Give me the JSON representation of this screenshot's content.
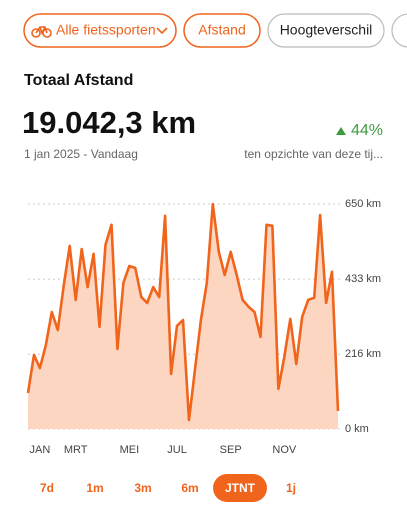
{
  "filters": [
    "Alle fietssporten",
    "Afstand",
    "Hoogteverschil"
  ],
  "summary": {
    "title": "Totaal Afstand",
    "total": "19.042,3 km",
    "change": "44%",
    "period": "1 jan 2025 - Vandaag",
    "comparison": "ten opzichte van deze tij..."
  },
  "chart_data": {
    "type": "area",
    "categories": [
      null,
      null,
      "JAN",
      null,
      null,
      null,
      null,
      null,
      "MRT",
      null,
      null,
      null,
      null,
      null,
      null,
      null,
      null,
      "MEI",
      null,
      null,
      null,
      null,
      null,
      null,
      null,
      "JUL",
      null,
      null,
      null,
      null,
      null,
      null,
      null,
      null,
      "SEP",
      null,
      null,
      null,
      null,
      null,
      null,
      null,
      null,
      "NOV",
      null,
      null,
      null,
      null,
      null,
      null,
      null,
      null,
      null
    ],
    "values": [
      104,
      214,
      176,
      243,
      338,
      286,
      416,
      529,
      373,
      520,
      410,
      506,
      295,
      532,
      590,
      231,
      422,
      471,
      465,
      381,
      364,
      410,
      381,
      616,
      159,
      298,
      315,
      26,
      170,
      315,
      422,
      650,
      512,
      445,
      512,
      445,
      373,
      353,
      338,
      266,
      590,
      587,
      116,
      208,
      318,
      188,
      324,
      373,
      379,
      618,
      364,
      454,
      52
    ],
    "color": "#f0641c",
    "fill_color": "#fcd6c1",
    "ylim": [
      0,
      650
    ],
    "yticks": [
      {
        "value": 0,
        "label": "0 km"
      },
      {
        "value": 216,
        "label": "216 km"
      },
      {
        "value": 433,
        "label": "433 km"
      },
      {
        "value": 650,
        "label": "650 km"
      }
    ],
    "grid": true
  },
  "range_tabs": {
    "options": [
      "7d",
      "1m",
      "3m",
      "6m",
      "JTNT",
      "1j"
    ],
    "selected": 4
  }
}
